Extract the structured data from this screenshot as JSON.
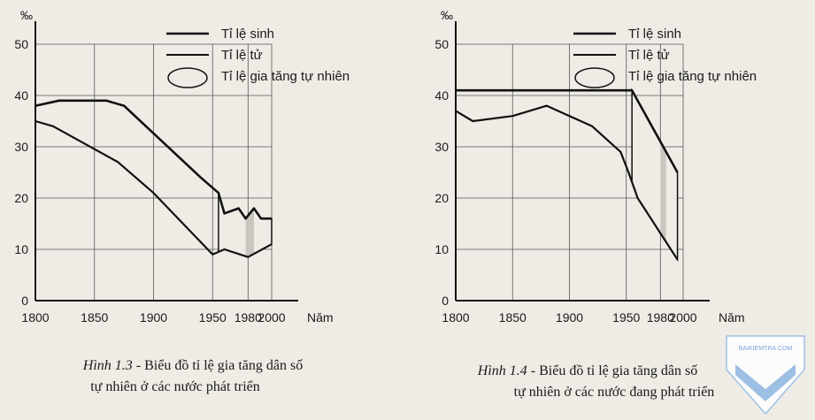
{
  "chart_data": [
    {
      "type": "line",
      "unit_label": "‰",
      "xlabel": "Năm",
      "ylabel": "",
      "xlim": [
        1800,
        2000
      ],
      "ylim": [
        0,
        50
      ],
      "x_ticks": [
        1800,
        1850,
        1900,
        1950,
        1980,
        2000
      ],
      "y_ticks": [
        0,
        10,
        20,
        30,
        40,
        50
      ],
      "grid": true,
      "legend_position": "top-right",
      "series": [
        {
          "name": "Tỉ lệ sinh",
          "x": [
            1800,
            1820,
            1860,
            1875,
            1940,
            1955,
            1960,
            1972,
            1978,
            1985,
            1991,
            2000
          ],
          "y": [
            38,
            39,
            39,
            38,
            24,
            21,
            17,
            18,
            16,
            18,
            16,
            16
          ]
        },
        {
          "name": "Tỉ lệ tử",
          "x": [
            1800,
            1815,
            1870,
            1900,
            1950,
            1960,
            1980,
            2000
          ],
          "y": [
            35,
            34,
            27,
            21,
            9,
            10,
            8.5,
            11
          ]
        },
        {
          "name": "Tỉ lệ gia tăng tự nhiên",
          "x": [],
          "y": []
        }
      ],
      "caption_fig": "Hình 1.3",
      "caption_line1": " - Biểu đồ tỉ lệ gia tăng dân số",
      "caption_line2": "tự nhiên ở các nước phát triển"
    },
    {
      "type": "line",
      "unit_label": "‰",
      "xlabel": "Năm",
      "ylabel": "",
      "xlim": [
        1800,
        2000
      ],
      "ylim": [
        0,
        50
      ],
      "x_ticks": [
        1800,
        1850,
        1900,
        1950,
        1980,
        2000
      ],
      "y_ticks": [
        0,
        10,
        20,
        30,
        40,
        50
      ],
      "grid": true,
      "legend_position": "top-right",
      "series": [
        {
          "name": "Tỉ lệ sinh",
          "x": [
            1800,
            1950,
            1955,
            1995
          ],
          "y": [
            41,
            41,
            41,
            25
          ]
        },
        {
          "name": "Tỉ lệ tử",
          "x": [
            1800,
            1815,
            1850,
            1880,
            1920,
            1945,
            1952,
            1960,
            1995
          ],
          "y": [
            37,
            35,
            36,
            38,
            34,
            29,
            25,
            20,
            8
          ]
        },
        {
          "name": "Tỉ lệ gia tăng tự nhiên",
          "x": [],
          "y": []
        }
      ],
      "caption_fig": "Hình 1.4",
      "caption_line1": " - Biểu đồ tỉ lệ gia tăng dân số",
      "caption_line2": "tự nhiên ở các nước đang phát triển"
    }
  ],
  "watermark": {
    "text": "BAIKIEMTRA.COM",
    "color": "#7aa7d6"
  }
}
